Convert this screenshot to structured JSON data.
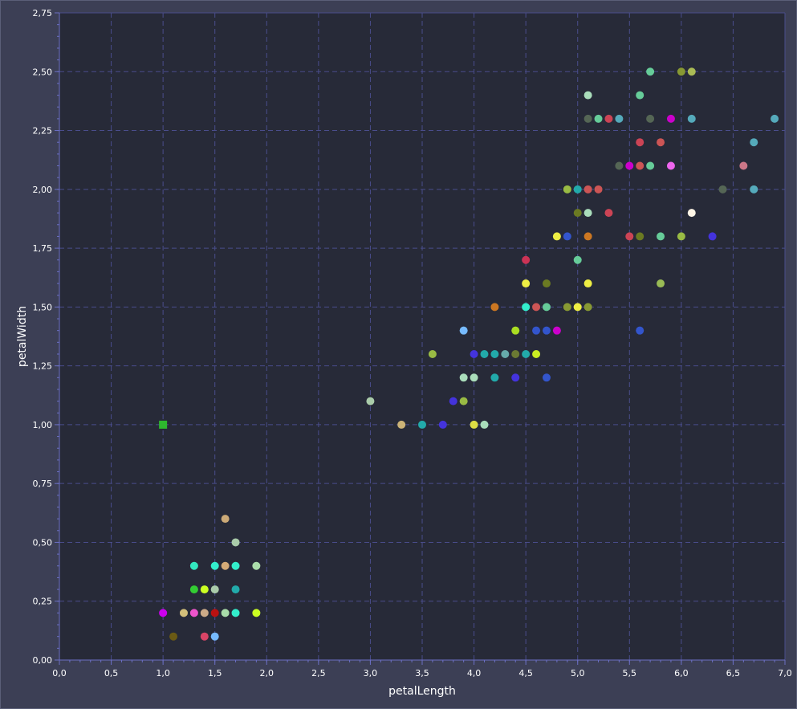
{
  "chart_data": {
    "type": "scatter",
    "xlabel": "petalLength",
    "ylabel": "petalWidth",
    "xlim": [
      0,
      7
    ],
    "ylim": [
      0,
      2.75
    ],
    "x_ticks": [
      "0,0",
      "0,5",
      "1,0",
      "1,5",
      "2,0",
      "2,5",
      "3,0",
      "3,5",
      "4,0",
      "4,5",
      "5,0",
      "5,5",
      "6,0",
      "6,5",
      "7,0"
    ],
    "y_ticks": [
      "0,00",
      "0,25",
      "0,50",
      "0,75",
      "1,00",
      "1,25",
      "1,50",
      "1,75",
      "2,00",
      "2,25",
      "2,50",
      "2,75"
    ],
    "grid": true,
    "colors": {
      "plot_background": "#272a38",
      "frame_background": "#3c3f55",
      "grid": "#4a4d8c",
      "axis": "#6b6fc4"
    },
    "points": [
      {
        "x": 1.0,
        "y": 1.0,
        "color": "#2eb82e",
        "marker": "square"
      },
      {
        "x": 1.0,
        "y": 0.2,
        "color": "#cc00ee"
      },
      {
        "x": 1.1,
        "y": 0.1,
        "color": "#6b5a14"
      },
      {
        "x": 1.2,
        "y": 0.2,
        "color": "#d4c07a"
      },
      {
        "x": 1.3,
        "y": 0.2,
        "color": "#ee55cc"
      },
      {
        "x": 1.3,
        "y": 0.3,
        "color": "#33cc33"
      },
      {
        "x": 1.3,
        "y": 0.4,
        "color": "#33e8c0"
      },
      {
        "x": 1.4,
        "y": 0.1,
        "color": "#d94466"
      },
      {
        "x": 1.4,
        "y": 0.2,
        "color": "#ccaa88"
      },
      {
        "x": 1.4,
        "y": 0.3,
        "color": "#ccff22"
      },
      {
        "x": 1.5,
        "y": 0.1,
        "color": "#77bbff"
      },
      {
        "x": 1.5,
        "y": 0.2,
        "color": "#bb1111"
      },
      {
        "x": 1.5,
        "y": 0.3,
        "color": "#aaccaa"
      },
      {
        "x": 1.5,
        "y": 0.4,
        "color": "#33eecc"
      },
      {
        "x": 1.6,
        "y": 0.2,
        "color": "#aaddaa"
      },
      {
        "x": 1.6,
        "y": 0.4,
        "color": "#d4aa77"
      },
      {
        "x": 1.6,
        "y": 0.6,
        "color": "#ccaa77"
      },
      {
        "x": 1.7,
        "y": 0.2,
        "color": "#33eecc"
      },
      {
        "x": 1.7,
        "y": 0.3,
        "color": "#22aaaa"
      },
      {
        "x": 1.7,
        "y": 0.4,
        "color": "#33eecc"
      },
      {
        "x": 1.7,
        "y": 0.5,
        "color": "#aaccaa"
      },
      {
        "x": 1.9,
        "y": 0.2,
        "color": "#ccff22"
      },
      {
        "x": 1.9,
        "y": 0.4,
        "color": "#aaddaa"
      },
      {
        "x": 3.0,
        "y": 1.1,
        "color": "#aaccaa"
      },
      {
        "x": 3.3,
        "y": 1.0,
        "color": "#ccb377"
      },
      {
        "x": 3.5,
        "y": 1.0,
        "color": "#22aaaa"
      },
      {
        "x": 3.6,
        "y": 1.3,
        "color": "#99bb44"
      },
      {
        "x": 3.7,
        "y": 1.0,
        "color": "#4433dd"
      },
      {
        "x": 3.8,
        "y": 1.1,
        "color": "#4433dd"
      },
      {
        "x": 3.9,
        "y": 1.1,
        "color": "#99bb44"
      },
      {
        "x": 3.9,
        "y": 1.2,
        "color": "#aaddbb"
      },
      {
        "x": 3.9,
        "y": 1.4,
        "color": "#77bbff"
      },
      {
        "x": 4.0,
        "y": 1.0,
        "color": "#dddd44"
      },
      {
        "x": 4.0,
        "y": 1.2,
        "color": "#aaddbb"
      },
      {
        "x": 4.0,
        "y": 1.3,
        "color": "#4433dd"
      },
      {
        "x": 4.1,
        "y": 1.0,
        "color": "#aaddbb"
      },
      {
        "x": 4.1,
        "y": 1.3,
        "color": "#22aaaa"
      },
      {
        "x": 4.2,
        "y": 1.2,
        "color": "#22aaaa"
      },
      {
        "x": 4.2,
        "y": 1.3,
        "color": "#22aaaa"
      },
      {
        "x": 4.2,
        "y": 1.5,
        "color": "#cc7722"
      },
      {
        "x": 4.3,
        "y": 1.3,
        "color": "#66aaaa"
      },
      {
        "x": 4.4,
        "y": 1.2,
        "color": "#4433dd"
      },
      {
        "x": 4.4,
        "y": 1.3,
        "color": "#6b7a33"
      },
      {
        "x": 4.4,
        "y": 1.4,
        "color": "#aadd22"
      },
      {
        "x": 4.5,
        "y": 1.3,
        "color": "#22aaaa"
      },
      {
        "x": 4.5,
        "y": 1.5,
        "color": "#33eecc"
      },
      {
        "x": 4.5,
        "y": 1.6,
        "color": "#eeee44"
      },
      {
        "x": 4.5,
        "y": 1.7,
        "color": "#cc3355"
      },
      {
        "x": 4.6,
        "y": 1.3,
        "color": "#ccee22"
      },
      {
        "x": 4.6,
        "y": 1.4,
        "color": "#3355cc"
      },
      {
        "x": 4.6,
        "y": 1.5,
        "color": "#cc5555"
      },
      {
        "x": 4.7,
        "y": 1.2,
        "color": "#3355cc"
      },
      {
        "x": 4.7,
        "y": 1.4,
        "color": "#3355cc"
      },
      {
        "x": 4.7,
        "y": 1.5,
        "color": "#66cc99"
      },
      {
        "x": 4.7,
        "y": 1.6,
        "color": "#6b7a22"
      },
      {
        "x": 4.8,
        "y": 1.4,
        "color": "#cc00cc"
      },
      {
        "x": 4.8,
        "y": 1.8,
        "color": "#eeee44"
      },
      {
        "x": 4.9,
        "y": 1.5,
        "color": "#889933"
      },
      {
        "x": 4.9,
        "y": 1.8,
        "color": "#3355cc"
      },
      {
        "x": 4.9,
        "y": 2.0,
        "color": "#99bb44"
      },
      {
        "x": 5.0,
        "y": 1.5,
        "color": "#eeee44"
      },
      {
        "x": 5.0,
        "y": 1.7,
        "color": "#66cc99"
      },
      {
        "x": 5.0,
        "y": 1.9,
        "color": "#6b7a22"
      },
      {
        "x": 5.0,
        "y": 2.0,
        "color": "#22aaaa"
      },
      {
        "x": 5.1,
        "y": 1.5,
        "color": "#889933"
      },
      {
        "x": 5.1,
        "y": 1.6,
        "color": "#eeee44"
      },
      {
        "x": 5.1,
        "y": 1.8,
        "color": "#cc7722"
      },
      {
        "x": 5.1,
        "y": 1.9,
        "color": "#aaddbb"
      },
      {
        "x": 5.1,
        "y": 2.0,
        "color": "#cc5555"
      },
      {
        "x": 5.1,
        "y": 2.3,
        "color": "#556655"
      },
      {
        "x": 5.1,
        "y": 2.4,
        "color": "#aaddbb"
      },
      {
        "x": 5.2,
        "y": 2.0,
        "color": "#cc5555"
      },
      {
        "x": 5.2,
        "y": 2.3,
        "color": "#66cc99"
      },
      {
        "x": 5.3,
        "y": 1.9,
        "color": "#cc4455"
      },
      {
        "x": 5.3,
        "y": 2.3,
        "color": "#cc4455"
      },
      {
        "x": 5.4,
        "y": 2.1,
        "color": "#556655"
      },
      {
        "x": 5.4,
        "y": 2.3,
        "color": "#55aabb"
      },
      {
        "x": 5.5,
        "y": 1.8,
        "color": "#cc4455"
      },
      {
        "x": 5.5,
        "y": 2.1,
        "color": "#cc00cc"
      },
      {
        "x": 5.6,
        "y": 1.4,
        "color": "#3355cc"
      },
      {
        "x": 5.6,
        "y": 1.8,
        "color": "#6b7a22"
      },
      {
        "x": 5.6,
        "y": 2.1,
        "color": "#cc5555"
      },
      {
        "x": 5.6,
        "y": 2.2,
        "color": "#cc4455"
      },
      {
        "x": 5.6,
        "y": 2.4,
        "color": "#66cc99"
      },
      {
        "x": 5.7,
        "y": 2.1,
        "color": "#66cc99"
      },
      {
        "x": 5.7,
        "y": 2.3,
        "color": "#556655"
      },
      {
        "x": 5.7,
        "y": 2.5,
        "color": "#66cc99"
      },
      {
        "x": 5.8,
        "y": 1.6,
        "color": "#99bb55"
      },
      {
        "x": 5.8,
        "y": 1.8,
        "color": "#66cc99"
      },
      {
        "x": 5.8,
        "y": 2.2,
        "color": "#cc5555"
      },
      {
        "x": 5.9,
        "y": 2.1,
        "color": "#ee66ee"
      },
      {
        "x": 5.9,
        "y": 2.3,
        "color": "#cc00cc"
      },
      {
        "x": 6.0,
        "y": 1.8,
        "color": "#99bb44"
      },
      {
        "x": 6.0,
        "y": 2.5,
        "color": "#889933"
      },
      {
        "x": 6.1,
        "y": 1.9,
        "color": "#fff5e6"
      },
      {
        "x": 6.1,
        "y": 2.3,
        "color": "#55aabb"
      },
      {
        "x": 6.1,
        "y": 2.5,
        "color": "#aabb55"
      },
      {
        "x": 6.3,
        "y": 1.8,
        "color": "#4433dd"
      },
      {
        "x": 6.4,
        "y": 2.0,
        "color": "#556655"
      },
      {
        "x": 6.6,
        "y": 2.1,
        "color": "#cc7788"
      },
      {
        "x": 6.7,
        "y": 2.0,
        "color": "#55aabb"
      },
      {
        "x": 6.7,
        "y": 2.2,
        "color": "#55aabb"
      },
      {
        "x": 6.9,
        "y": 2.3,
        "color": "#55aabb"
      }
    ]
  }
}
